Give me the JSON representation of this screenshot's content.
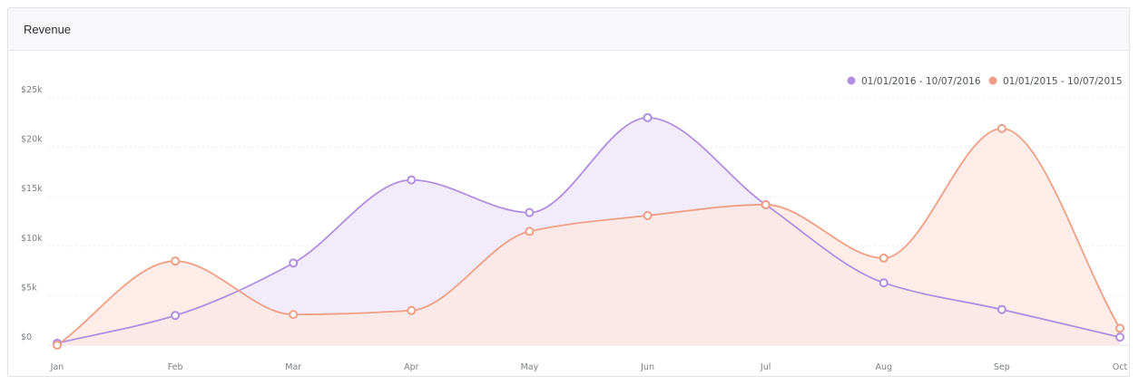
{
  "card": {
    "title": "Revenue"
  },
  "chart_data": {
    "type": "area",
    "title": "Revenue",
    "xlabel": "",
    "ylabel": "",
    "categories": [
      "Jan",
      "Feb",
      "Mar",
      "Apr",
      "May",
      "Jun",
      "Jul",
      "Aug",
      "Sep",
      "Oct"
    ],
    "y_ticks": [
      0,
      5000,
      10000,
      15000,
      20000,
      25000
    ],
    "y_tick_labels": [
      "$0",
      "$5k",
      "$10k",
      "$15k",
      "$20k",
      "$25k"
    ],
    "ylim": [
      0,
      25000
    ],
    "grid": true,
    "legend_position": "top-right",
    "series": [
      {
        "name": "01/01/2016 - 10/07/2016",
        "color": "#b08ee0",
        "fill": "#efe8f9",
        "values": [
          200,
          3000,
          8300,
          16700,
          13400,
          23000,
          14200,
          6300,
          3600,
          800
        ]
      },
      {
        "name": "01/01/2015 - 10/07/2015",
        "color": "#ef9f86",
        "fill": "#fde9e3",
        "values": [
          0,
          8500,
          3100,
          3500,
          11500,
          13100,
          14200,
          8800,
          21900,
          1700
        ]
      }
    ]
  }
}
